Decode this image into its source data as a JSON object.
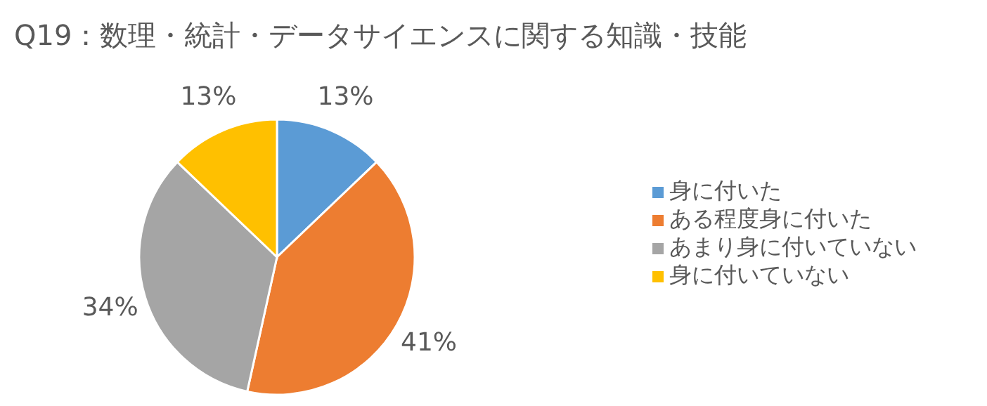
{
  "chart_data": {
    "type": "pie",
    "title": "Q19：数理・統計・データサイエンスに関する知識・技能",
    "categories": [
      "身に付いた",
      "ある程度身に付いた",
      "あまり身に付いていない",
      "身に付いていない"
    ],
    "values": [
      13,
      41,
      34,
      13
    ],
    "value_labels": [
      "13%",
      "41%",
      "34%",
      "13%"
    ],
    "colors": [
      "#5b9bd5",
      "#ed7d31",
      "#a5a5a5",
      "#ffc000"
    ],
    "legend": "right"
  }
}
